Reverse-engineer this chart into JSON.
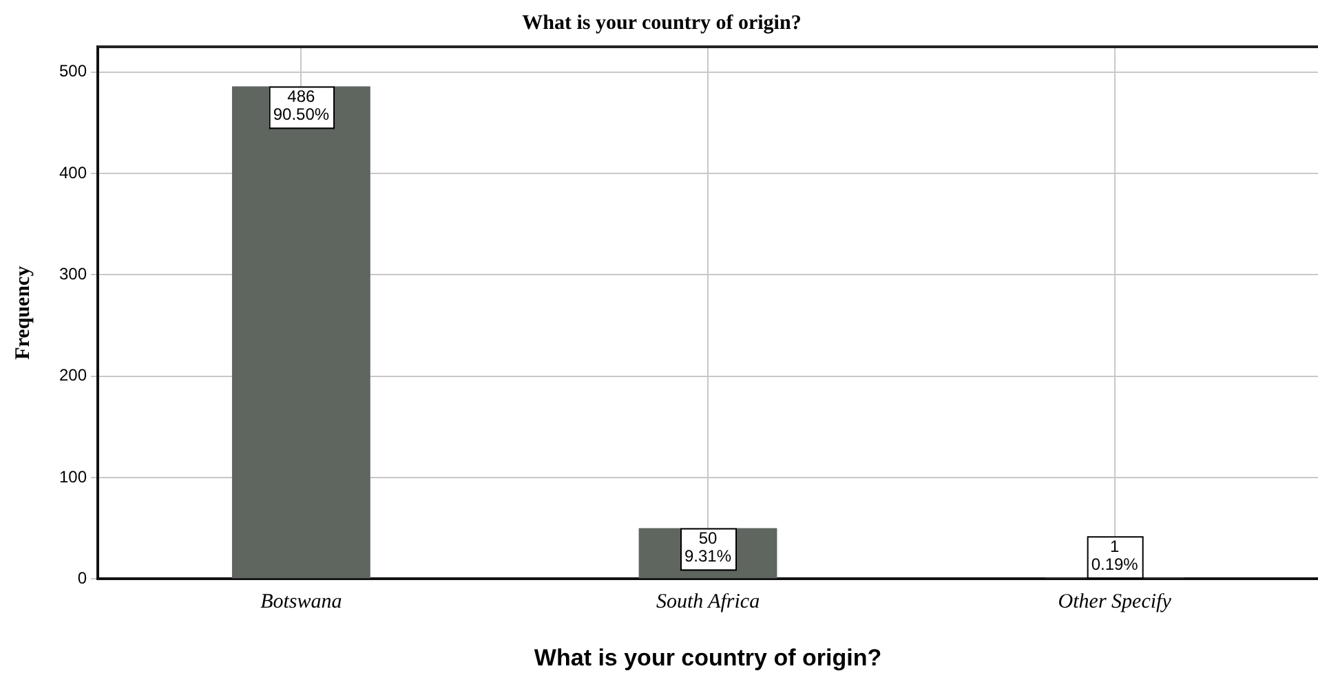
{
  "chart_data": {
    "type": "bar",
    "title": "What is your country of origin?",
    "xlabel": "What is your country of origin?",
    "ylabel": "Frequency",
    "categories": [
      "Botswana",
      "South Africa",
      "Other Specify"
    ],
    "values": [
      486,
      50,
      1
    ],
    "value_labels": [
      "486\n90.50%",
      "50\n9.31%",
      "1\n0.19%"
    ],
    "color": "#5f6660",
    "ylim": [
      0,
      525
    ],
    "yticks": [
      0,
      100,
      200,
      300,
      400,
      500
    ],
    "grid": true,
    "legend": false
  }
}
